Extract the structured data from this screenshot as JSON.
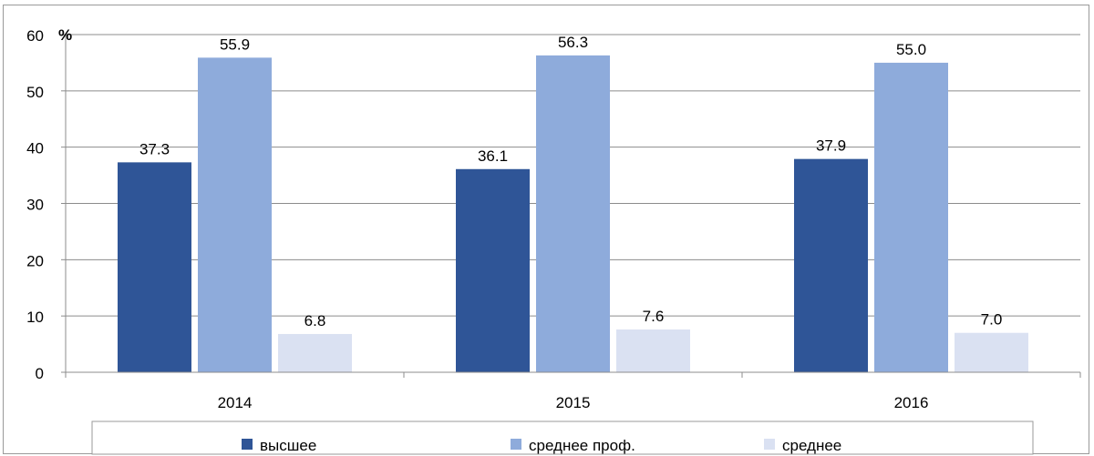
{
  "chart_data": {
    "type": "bar",
    "title": "",
    "xlabel": "",
    "ylabel": "%",
    "categories": [
      "2014",
      "2015",
      "2016"
    ],
    "series": [
      {
        "name": "высшее",
        "values": [
          37.3,
          36.1,
          37.9
        ],
        "labels": [
          "37.3",
          "36.1",
          "37.9"
        ],
        "color": "#2f5597"
      },
      {
        "name": "среднее проф.",
        "values": [
          55.9,
          56.3,
          55.0
        ],
        "labels": [
          "55.9",
          "56.3",
          "55.0"
        ],
        "color": "#8eabdb"
      },
      {
        "name": "среднее",
        "values": [
          6.8,
          7.6,
          7.0
        ],
        "labels": [
          "6.8",
          "7.6",
          "7.0"
        ],
        "color": "#dae1f2"
      }
    ],
    "ylim": [
      0,
      60
    ],
    "yticks": [
      0,
      10,
      20,
      30,
      40,
      50,
      60
    ],
    "ytick_labels": [
      "0",
      "10",
      "20",
      "30",
      "40",
      "50",
      "60"
    ],
    "grid": true,
    "legend": "bottom"
  }
}
